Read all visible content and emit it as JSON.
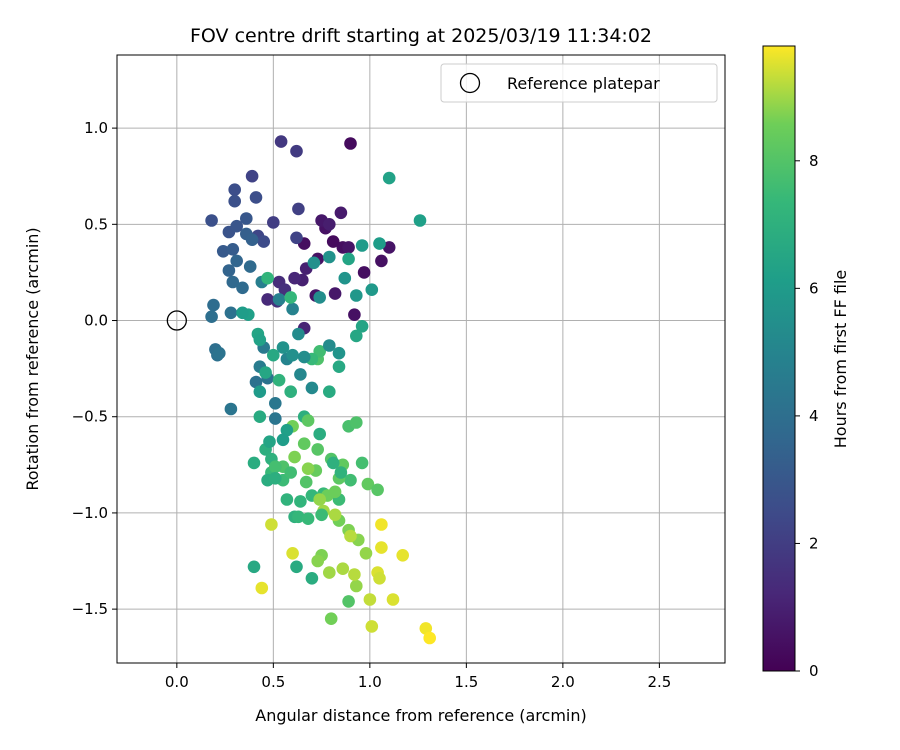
{
  "chart_data": {
    "type": "scatter",
    "title": "FOV centre drift starting at 2025/03/19 11:34:02",
    "xlabel": "Angular distance from reference (arcmin)",
    "ylabel": "Rotation from reference (arcmin)",
    "xlim": [
      -0.31,
      2.84
    ],
    "ylim": [
      -1.78,
      1.38
    ],
    "xticks": [
      0.0,
      0.5,
      1.0,
      1.5,
      2.0,
      2.5
    ],
    "xtick_labels": [
      "0.0",
      "0.5",
      "1.0",
      "1.5",
      "2.0",
      "2.5"
    ],
    "yticks": [
      -1.5,
      -1.0,
      -0.5,
      0.0,
      0.5,
      1.0
    ],
    "ytick_labels": [
      "−1.5",
      "−1.0",
      "−0.5",
      "0.0",
      "0.5",
      "1.0"
    ],
    "grid": true,
    "legend": {
      "position": "top-right",
      "entries": [
        "Reference platepar"
      ]
    },
    "reference_point": {
      "x": 0.0,
      "y": 0.0,
      "label": "Reference platepar"
    },
    "colorbar": {
      "label": "Hours from first FF file",
      "colormap": "viridis",
      "range": [
        0,
        9.8
      ],
      "ticks": [
        0,
        2,
        4,
        6,
        8
      ],
      "tick_labels": [
        "0",
        "2",
        "4",
        "6",
        "8"
      ]
    },
    "points": [
      [
        0.9,
        0.92,
        0.3
      ],
      [
        0.66,
        0.4,
        0.4
      ],
      [
        0.77,
        0.48,
        0.5
      ],
      [
        0.86,
        0.38,
        0.4
      ],
      [
        0.89,
        0.38,
        0.6
      ],
      [
        0.81,
        0.41,
        0.3
      ],
      [
        0.85,
        0.56,
        0.8
      ],
      [
        0.75,
        0.52,
        0.7
      ],
      [
        0.79,
        0.5,
        0.9
      ],
      [
        0.65,
        0.21,
        1.0
      ],
      [
        0.72,
        0.13,
        0.6
      ],
      [
        0.82,
        0.14,
        0.7
      ],
      [
        0.92,
        0.03,
        0.5
      ],
      [
        0.97,
        0.25,
        0.4
      ],
      [
        1.06,
        0.31,
        0.5
      ],
      [
        1.1,
        0.38,
        0.6
      ],
      [
        0.73,
        0.32,
        0.5
      ],
      [
        0.67,
        0.27,
        1.0
      ],
      [
        0.61,
        0.22,
        1.2
      ],
      [
        0.66,
        -0.04,
        1.1
      ],
      [
        0.47,
        0.11,
        1.3
      ],
      [
        0.53,
        0.2,
        1.4
      ],
      [
        0.56,
        0.16,
        1.5
      ],
      [
        0.52,
        0.1,
        1.6
      ],
      [
        0.54,
        0.93,
        1.8
      ],
      [
        0.62,
        0.88,
        1.9
      ],
      [
        0.39,
        0.75,
        2.2
      ],
      [
        0.63,
        0.58,
        2.1
      ],
      [
        0.5,
        0.51,
        2.0
      ],
      [
        0.62,
        0.43,
        2.2
      ],
      [
        0.42,
        0.44,
        2.3
      ],
      [
        0.45,
        0.41,
        2.5
      ],
      [
        0.3,
        0.68,
        2.6
      ],
      [
        0.3,
        0.62,
        2.7
      ],
      [
        0.41,
        0.64,
        2.6
      ],
      [
        0.18,
        0.52,
        2.7
      ],
      [
        0.27,
        0.46,
        2.8
      ],
      [
        0.31,
        0.49,
        2.9
      ],
      [
        0.36,
        0.53,
        3.0
      ],
      [
        0.24,
        0.36,
        3.1
      ],
      [
        0.29,
        0.37,
        3.2
      ],
      [
        0.36,
        0.45,
        3.3
      ],
      [
        0.39,
        0.42,
        3.4
      ],
      [
        0.27,
        0.26,
        3.5
      ],
      [
        0.31,
        0.31,
        3.6
      ],
      [
        0.29,
        0.2,
        3.7
      ],
      [
        0.34,
        0.17,
        3.8
      ],
      [
        0.38,
        0.28,
        3.8
      ],
      [
        0.19,
        0.08,
        3.9
      ],
      [
        0.18,
        0.02,
        4.0
      ],
      [
        0.28,
        0.04,
        4.1
      ],
      [
        0.2,
        -0.15,
        4.0
      ],
      [
        0.21,
        -0.18,
        4.1
      ],
      [
        0.22,
        -0.17,
        4.2
      ],
      [
        0.28,
        -0.46,
        4.3
      ],
      [
        0.41,
        -0.32,
        4.1
      ],
      [
        0.47,
        -0.3,
        4.2
      ],
      [
        0.51,
        -0.51,
        4.3
      ],
      [
        0.51,
        -0.43,
        4.4
      ],
      [
        0.45,
        -0.14,
        4.5
      ],
      [
        0.43,
        -0.24,
        4.6
      ],
      [
        0.44,
        0.2,
        4.7
      ],
      [
        0.53,
        0.11,
        4.8
      ],
      [
        0.6,
        0.06,
        4.9
      ],
      [
        0.57,
        -0.2,
        5.0
      ],
      [
        0.64,
        -0.28,
        5.1
      ],
      [
        0.7,
        -0.35,
        5.2
      ],
      [
        0.63,
        -0.07,
        5.3
      ],
      [
        0.74,
        0.12,
        5.4
      ],
      [
        0.71,
        0.3,
        5.5
      ],
      [
        0.79,
        0.33,
        5.6
      ],
      [
        0.87,
        0.22,
        5.7
      ],
      [
        0.93,
        0.13,
        5.8
      ],
      [
        1.01,
        0.16,
        5.9
      ],
      [
        0.96,
        0.39,
        6.0
      ],
      [
        1.05,
        0.4,
        6.1
      ],
      [
        1.26,
        0.52,
        6.2
      ],
      [
        1.1,
        0.74,
        6.3
      ],
      [
        0.96,
        -0.03,
        6.4
      ],
      [
        0.93,
        -0.08,
        6.5
      ],
      [
        0.84,
        -0.24,
        6.6
      ],
      [
        0.79,
        -0.37,
        6.7
      ],
      [
        0.74,
        -0.59,
        6.8
      ],
      [
        0.66,
        -0.5,
        6.9
      ],
      [
        0.59,
        -0.37,
        7.0
      ],
      [
        0.53,
        -0.31,
        7.1
      ],
      [
        0.46,
        -0.67,
        6.9
      ],
      [
        0.49,
        -0.72,
        7.0
      ],
      [
        0.4,
        -0.74,
        6.8
      ],
      [
        0.43,
        -0.5,
        6.7
      ],
      [
        0.4,
        -1.28,
        6.6
      ],
      [
        0.62,
        -1.28,
        6.7
      ],
      [
        0.7,
        -1.34,
        6.8
      ],
      [
        0.61,
        -1.02,
        7.0
      ],
      [
        0.57,
        -0.93,
        7.1
      ],
      [
        0.64,
        -0.94,
        7.2
      ],
      [
        0.7,
        -0.91,
        7.3
      ],
      [
        0.76,
        -0.9,
        7.4
      ],
      [
        0.84,
        -0.93,
        7.5
      ],
      [
        0.9,
        -0.83,
        7.6
      ],
      [
        0.96,
        -0.74,
        7.7
      ],
      [
        0.89,
        -0.55,
        7.8
      ],
      [
        0.93,
        -0.53,
        7.9
      ],
      [
        0.8,
        -0.72,
        8.0
      ],
      [
        0.73,
        -0.67,
        8.1
      ],
      [
        0.68,
        -0.52,
        8.2
      ],
      [
        0.66,
        -0.64,
        8.3
      ],
      [
        0.72,
        -0.78,
        8.4
      ],
      [
        0.78,
        -0.91,
        8.5
      ],
      [
        0.84,
        -1.04,
        8.6
      ],
      [
        0.89,
        -1.09,
        8.7
      ],
      [
        0.94,
        -1.14,
        8.8
      ],
      [
        0.98,
        -1.21,
        8.9
      ],
      [
        0.93,
        -1.38,
        8.9
      ],
      [
        0.89,
        -1.46,
        8.0
      ],
      [
        0.8,
        -1.55,
        8.6
      ],
      [
        0.75,
        -1.22,
        8.7
      ],
      [
        0.73,
        -1.25,
        8.8
      ],
      [
        0.79,
        -1.31,
        9.0
      ],
      [
        0.86,
        -1.29,
        9.1
      ],
      [
        0.92,
        -1.32,
        9.2
      ],
      [
        1.0,
        -1.45,
        9.3
      ],
      [
        1.01,
        -1.59,
        9.4
      ],
      [
        1.12,
        -1.45,
        9.5
      ],
      [
        1.06,
        -1.18,
        9.6
      ],
      [
        1.06,
        -1.06,
        9.7
      ],
      [
        1.17,
        -1.22,
        9.6
      ],
      [
        1.29,
        -1.6,
        9.7
      ],
      [
        1.31,
        -1.65,
        9.8
      ],
      [
        1.04,
        -1.31,
        9.5
      ],
      [
        1.05,
        -1.34,
        9.4
      ],
      [
        0.9,
        -1.12,
        9.2
      ],
      [
        0.82,
        -1.01,
        9.1
      ],
      [
        0.76,
        -0.99,
        9.0
      ],
      [
        0.74,
        -0.93,
        8.9
      ],
      [
        0.68,
        -0.77,
        8.8
      ],
      [
        0.61,
        -0.71,
        8.7
      ],
      [
        0.6,
        -0.55,
        8.6
      ],
      [
        0.82,
        -0.89,
        8.5
      ],
      [
        0.86,
        -0.75,
        8.3
      ],
      [
        0.84,
        -0.82,
        8.2
      ],
      [
        0.73,
        -0.2,
        7.9
      ],
      [
        0.74,
        -0.16,
        7.6
      ],
      [
        0.7,
        -0.2,
        7.4
      ],
      [
        0.47,
        0.22,
        7.2
      ],
      [
        0.59,
        0.12,
        7.3
      ],
      [
        0.5,
        -0.18,
        6.6
      ],
      [
        0.46,
        -0.27,
        6.5
      ],
      [
        0.42,
        -0.07,
        6.4
      ],
      [
        0.43,
        -0.1,
        6.3
      ],
      [
        0.37,
        0.03,
        6.2
      ],
      [
        0.34,
        0.04,
        6.1
      ],
      [
        0.43,
        -0.37,
        6.0
      ],
      [
        0.49,
        -0.79,
        7.4
      ],
      [
        0.49,
        -1.06,
        9.4
      ],
      [
        0.44,
        -1.39,
        9.6
      ],
      [
        0.6,
        -1.21,
        9.5
      ],
      [
        0.55,
        -0.76,
        7.9
      ],
      [
        0.51,
        -0.76,
        7.7
      ],
      [
        0.55,
        -0.83,
        7.5
      ],
      [
        0.59,
        -0.79,
        7.6
      ],
      [
        0.67,
        -0.84,
        8.0
      ],
      [
        0.63,
        -1.02,
        7.3
      ],
      [
        0.68,
        -1.03,
        7.4
      ],
      [
        0.75,
        -1.01,
        7.5
      ],
      [
        0.81,
        -0.74,
        7.0
      ],
      [
        0.85,
        -0.79,
        7.1
      ],
      [
        0.47,
        -0.83,
        6.8
      ],
      [
        0.51,
        -0.82,
        6.9
      ],
      [
        0.57,
        -0.57,
        6.2
      ],
      [
        0.55,
        -0.62,
        6.1
      ],
      [
        0.48,
        -0.63,
        6.4
      ],
      [
        0.55,
        -0.14,
        5.6
      ],
      [
        0.6,
        -0.18,
        5.5
      ],
      [
        0.66,
        -0.19,
        5.4
      ],
      [
        0.79,
        -0.13,
        5.3
      ],
      [
        0.99,
        -0.85,
        8.3
      ],
      [
        1.04,
        -0.88,
        8.1
      ],
      [
        0.84,
        -0.17,
        5.7
      ],
      [
        0.89,
        0.32,
        6.4
      ]
    ]
  }
}
